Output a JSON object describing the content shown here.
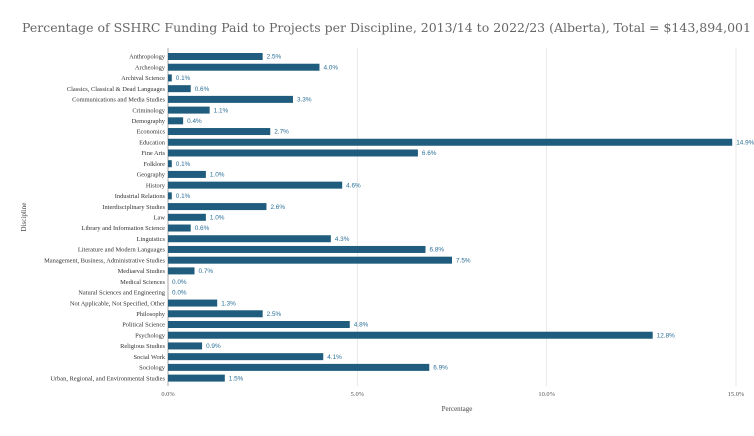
{
  "chart_data": {
    "type": "bar",
    "orientation": "horizontal",
    "title": "Percentage of SSHRC Funding Paid to Projects per Discipline, 2013/14 to 2022/23 (Alberta), Total = $143,894,001",
    "xlabel": "Percentage",
    "ylabel": "Discipline",
    "xlim": [
      0,
      15
    ],
    "x_ticks": [
      0,
      5,
      10,
      15
    ],
    "x_tick_labels": [
      "0.0%",
      "5.0%",
      "10.0%",
      "15.0%"
    ],
    "grid": "vertical",
    "bar_color": "#1f5c7d",
    "categories": [
      "Anthropology",
      "Archeology",
      "Archival Science",
      "Classics, Classical & Dead Languages",
      "Communications and Media Studies",
      "Criminology",
      "Demography",
      "Economics",
      "Education",
      "Fine Arts",
      "Folklore",
      "Geography",
      "History",
      "Industrial Relations",
      "Interdisciplinary Studies",
      "Law",
      "Library and Information Science",
      "Linguistics",
      "Literature and Modern Languages",
      "Management, Business, Administrative Studies",
      "Mediaeval Studies",
      "Medical Sciences",
      "Natural Sciences and Engineering",
      "Not Applicable, Not Specified, Other",
      "Philosophy",
      "Political Science",
      "Psychology",
      "Religious Studies",
      "Social Work",
      "Sociology",
      "Urban, Regional, and Environmental Studies"
    ],
    "values": [
      2.5,
      4.0,
      0.1,
      0.6,
      3.3,
      1.1,
      0.4,
      2.7,
      14.9,
      6.6,
      0.1,
      1.0,
      4.6,
      0.1,
      2.6,
      1.0,
      0.6,
      4.3,
      6.8,
      7.5,
      0.7,
      0.0,
      0.0,
      1.3,
      2.5,
      4.8,
      12.8,
      0.9,
      4.1,
      6.9,
      1.5
    ],
    "value_labels": [
      "2.5%",
      "4.0%",
      "0.1%",
      "0.6%",
      "3.3%",
      "1.1%",
      "0.4%",
      "2.7%",
      "14.9%",
      "6.6%",
      "0.1%",
      "1.0%",
      "4.6%",
      "0.1%",
      "2.6%",
      "1.0%",
      "0.6%",
      "4.3%",
      "6.8%",
      "7.5%",
      "0.7%",
      "0.0%",
      "0.0%",
      "1.3%",
      "2.5%",
      "4.8%",
      "12.8%",
      "0.9%",
      "4.1%",
      "6.9%",
      "1.5%"
    ]
  }
}
